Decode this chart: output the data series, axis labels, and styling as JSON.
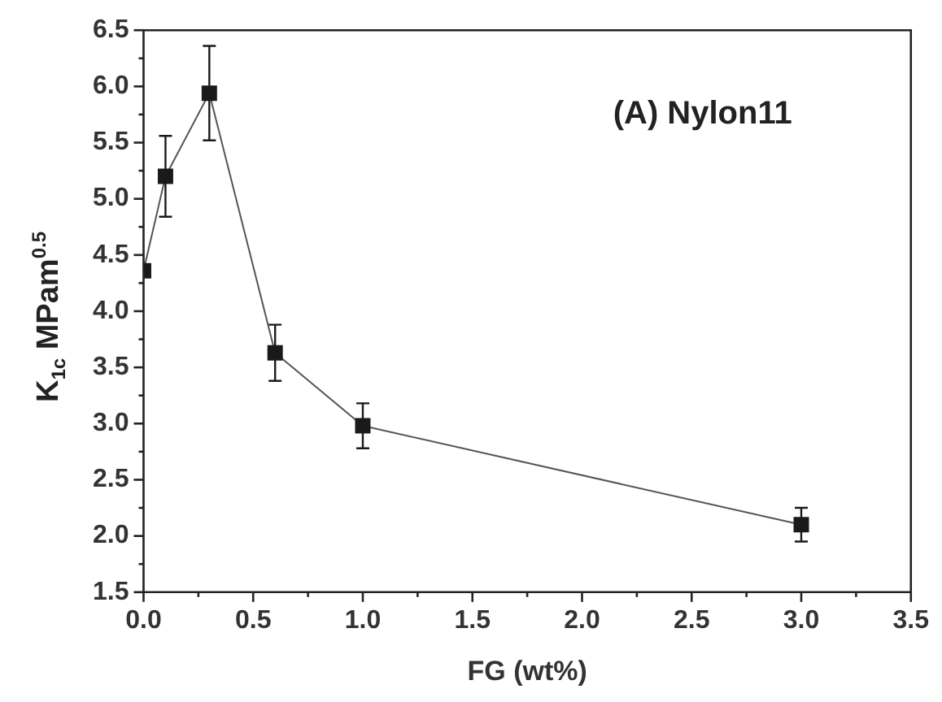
{
  "chart_data": {
    "type": "line",
    "xlabel": "FG (wt%)",
    "ylabel": "K$_{1c}$ MPam$^{0.5}$",
    "annotations": [
      "(A) Nylon11"
    ],
    "x": [
      0,
      0.1,
      0.3,
      0.6,
      1.0,
      3.0
    ],
    "series": [
      {
        "color": "#1a1a1a",
        "values": [
          4.36,
          5.2,
          5.94,
          3.63,
          2.98,
          2.1
        ],
        "errors": [
          null,
          0.36,
          0.42,
          0.25,
          0.2,
          0.15
        ]
      }
    ],
    "xlim": [
      0,
      3.5
    ],
    "xticks": [
      {
        "value": 0,
        "label": "0.0"
      },
      {
        "value": 0.5,
        "label": "0.5"
      },
      {
        "value": 1,
        "label": "1.0"
      },
      {
        "value": 1.5,
        "label": "1.5"
      },
      {
        "value": 2,
        "label": "2.0"
      },
      {
        "value": 2.5,
        "label": "2.5"
      },
      {
        "value": 3,
        "label": "3.0"
      },
      {
        "value": 3.5,
        "label": "3.5"
      }
    ],
    "ylim": [
      1.5,
      6.5
    ],
    "yticks": [
      1.5,
      {
        "value": 2,
        "label": "2.0"
      },
      2.5,
      {
        "value": 3,
        "label": "3.0"
      },
      3.5,
      {
        "value": 4,
        "label": "4.0"
      },
      4.5,
      {
        "value": 5,
        "label": "5.0"
      },
      5.5,
      {
        "value": 6,
        "label": "6.0"
      },
      6.5
    ],
    "marker": "square",
    "line_style": "solid",
    "grid": false,
    "legend": false
  }
}
